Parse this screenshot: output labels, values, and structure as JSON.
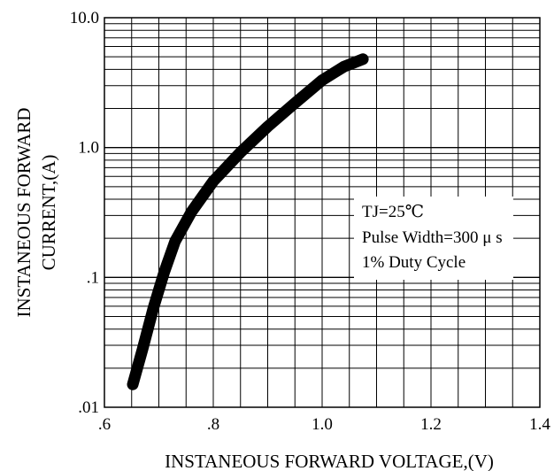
{
  "chart_data": {
    "type": "line",
    "title": "",
    "xlabel": "INSTANEOUS FORWARD VOLTAGE,(V)",
    "ylabel": [
      "INSTANEOUS FORWARD",
      "CURRENT,(A)"
    ],
    "x_scale": "linear",
    "y_scale": "log",
    "xlim": [
      0.6,
      1.4
    ],
    "ylim": [
      0.01,
      10.0
    ],
    "x_ticks": [
      {
        "value": 0.6,
        "label": ".6"
      },
      {
        "value": 0.8,
        "label": ".8"
      },
      {
        "value": 1.0,
        "label": "1.0"
      },
      {
        "value": 1.2,
        "label": "1.2"
      },
      {
        "value": 1.4,
        "label": "1.4"
      }
    ],
    "y_ticks": [
      {
        "value": 0.01,
        "label": ".01"
      },
      {
        "value": 0.1,
        "label": ".1"
      },
      {
        "value": 1.0,
        "label": "1.0"
      },
      {
        "value": 10.0,
        "label": "10.0"
      }
    ],
    "grid": true,
    "series": [
      {
        "x": [
          0.652,
          0.67,
          0.69,
          0.71,
          0.73,
          0.76,
          0.8,
          0.85,
          0.9,
          0.95,
          1.0,
          1.04,
          1.075
        ],
        "y": [
          0.015,
          0.028,
          0.058,
          0.11,
          0.19,
          0.32,
          0.55,
          0.92,
          1.45,
          2.2,
          3.3,
          4.2,
          4.8
        ]
      }
    ],
    "annotations": [
      "TJ=25℃",
      "Pulse Width=300 μ s",
      "1% Duty Cycle"
    ]
  }
}
